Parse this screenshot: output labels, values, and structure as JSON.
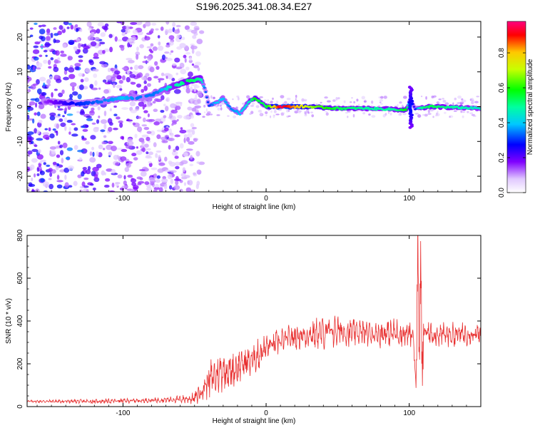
{
  "title": "S196.2025.341.08.34.E27",
  "spectrogram": {
    "xlabel": "Height of straight line (km)",
    "ylabel": "Frequency (Hz)",
    "xlim": [
      -167,
      150
    ],
    "ylim": [
      -24.5,
      24.5
    ],
    "xticks": [
      -100,
      0,
      100
    ],
    "yticks": [
      -20,
      -10,
      0,
      10,
      20
    ],
    "colorbar": {
      "label": "Normalized spectral amplitude",
      "range": [
        0,
        0.98
      ],
      "ticks": [
        "0.0",
        "0.2",
        "0.4",
        "0.6",
        "0.8"
      ]
    }
  },
  "chart_data": [
    {
      "type": "heatmap",
      "title": "S196.2025.341.08.34.E27",
      "xlabel": "Height of straight line (km)",
      "ylabel": "Frequency (Hz)",
      "xlim": [
        -167,
        150
      ],
      "ylim": [
        -24.5,
        24.5
      ],
      "colorbar_label": "Normalized spectral amplitude",
      "colorbar_range": [
        0,
        0.98
      ],
      "ridge": {
        "x": [
          -155,
          -130,
          -115,
          -100,
          -90,
          -82,
          -76,
          -68,
          -60,
          -53,
          -46,
          -43,
          -40,
          -35,
          -30,
          -25,
          -18,
          -12,
          -8,
          -4,
          0,
          10,
          30,
          50,
          70,
          90,
          98,
          101,
          104,
          108,
          115,
          130,
          150
        ],
        "freq_hz": [
          1.5,
          0.8,
          1.5,
          2.5,
          2.5,
          3.0,
          4.0,
          5.5,
          6.5,
          7.5,
          8.0,
          5.5,
          0.5,
          1.0,
          2.5,
          -0.5,
          -2.0,
          1.5,
          2.5,
          1.5,
          0.0,
          0.0,
          0.0,
          -0.5,
          -0.5,
          -0.8,
          -1.0,
          2.0,
          -0.5,
          -0.5,
          0.0,
          -0.2,
          -0.5
        ],
        "amplitude": [
          0.15,
          0.3,
          0.35,
          0.4,
          0.35,
          0.35,
          0.35,
          0.45,
          0.5,
          0.55,
          0.5,
          0.35,
          0.3,
          0.4,
          0.4,
          0.35,
          0.4,
          0.45,
          0.6,
          0.55,
          0.55,
          0.98,
          0.7,
          0.55,
          0.5,
          0.5,
          0.6,
          0.2,
          0.25,
          0.5,
          0.55,
          0.5,
          0.45
        ]
      }
    },
    {
      "type": "line",
      "xlabel": "Height of straight line (km)",
      "ylabel": "SNR (10 * v/v)",
      "xlim": [
        -167,
        150
      ],
      "ylim": [
        0,
        800
      ],
      "xticks": [
        -100,
        0,
        100
      ],
      "yticks": [
        0,
        200,
        400,
        600,
        800
      ],
      "series": [
        {
          "name": "SNR",
          "color": "#e83030",
          "x": [
            -167,
            -120,
            -80,
            -60,
            -50,
            -45,
            -40,
            -35,
            -30,
            -25,
            -20,
            -15,
            -10,
            -5,
            0,
            10,
            20,
            30,
            40,
            50,
            60,
            70,
            80,
            90,
            100,
            103,
            105,
            106,
            107,
            108,
            109,
            110,
            120,
            130,
            140,
            150
          ],
          "values": [
            25,
            25,
            30,
            35,
            40,
            80,
            130,
            150,
            180,
            170,
            190,
            210,
            220,
            250,
            280,
            310,
            330,
            340,
            350,
            360,
            350,
            350,
            345,
            350,
            340,
            330,
            50,
            760,
            250,
            700,
            200,
            350,
            340,
            340,
            345,
            340
          ],
          "oscillation_amplitude": [
            5,
            10,
            10,
            15,
            25,
            60,
            80,
            90,
            90,
            80,
            80,
            70,
            70,
            70,
            60,
            55,
            55,
            60,
            70,
            70,
            60,
            60,
            60,
            60,
            60,
            50,
            0,
            0,
            0,
            0,
            0,
            50,
            50,
            50,
            50,
            50
          ]
        }
      ]
    }
  ],
  "colors": {
    "line": "#e83030",
    "axes": "#000000"
  }
}
